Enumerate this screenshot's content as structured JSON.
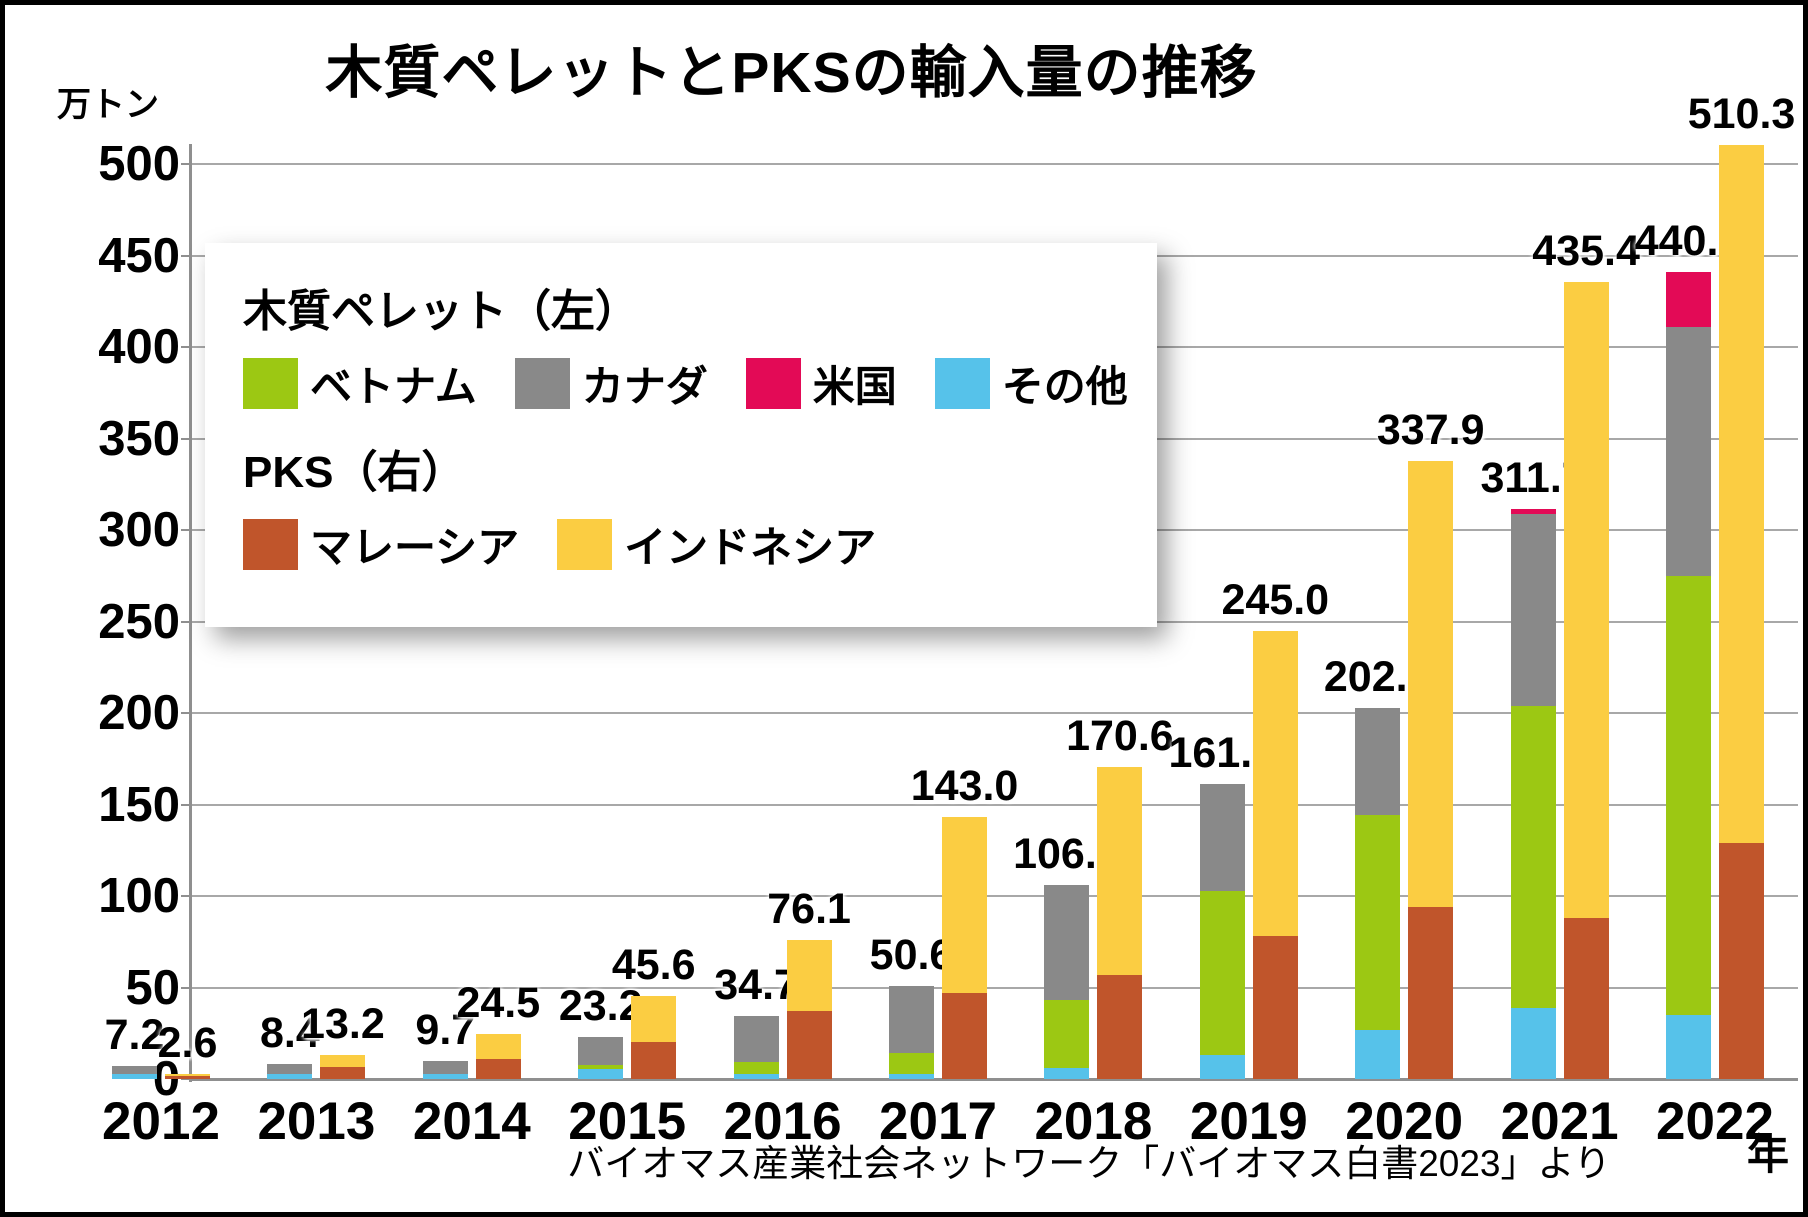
{
  "title": "木質ペレットとPKSの輸入量の推移",
  "y_unit": "万トン",
  "x_unit": "年",
  "source": "バイオマス産業社会ネットワーク「バイオマス白書2023」より",
  "chart_data": {
    "type": "bar",
    "stacked": true,
    "grid": true,
    "legend_position": "upper-left-overlay",
    "categories": [
      "2012",
      "2013",
      "2014",
      "2015",
      "2016",
      "2017",
      "2018",
      "2019",
      "2020",
      "2021",
      "2022"
    ],
    "ylim": [
      0,
      500
    ],
    "ytick_interval": 50,
    "legend_groups": [
      {
        "label": "木質ペレット（左）",
        "entries": [
          {
            "key": "vietnam",
            "name": "ベトナム",
            "color": "#9cc813"
          },
          {
            "key": "canada",
            "name": "カナダ",
            "color": "#898989"
          },
          {
            "key": "usa",
            "name": "米国",
            "color": "#e30a56"
          },
          {
            "key": "others",
            "name": "その他",
            "color": "#56c2ea"
          }
        ]
      },
      {
        "label": "PKS（右）",
        "entries": [
          {
            "key": "malaysia",
            "name": "マレーシア",
            "color": "#c0552b"
          },
          {
            "key": "indonesia",
            "name": "インドネシア",
            "color": "#fbcd42"
          }
        ]
      }
    ],
    "bars": [
      {
        "key": "pellet",
        "legend_group": 0,
        "stack_bottom_to_top": [
          "others",
          "vietnam",
          "canada",
          "usa"
        ],
        "totals": [
          "7.2",
          "8.4",
          "9.7",
          "23.2",
          "34.7",
          "50.6",
          "106.0",
          "161.0",
          "202.8",
          "311.7",
          "440.8"
        ],
        "segments": {
          "others": [
            2.5,
            2.5,
            2.7,
            5.7,
            2.6,
            2.6,
            6.0,
            13.0,
            27.0,
            39.0,
            35.0
          ],
          "vietnam": [
            0,
            0,
            0,
            2.1,
            6.7,
            11.8,
            37.0,
            89.5,
            117.0,
            165.0,
            240.0
          ],
          "canada": [
            4.7,
            5.9,
            7.0,
            15.4,
            25.4,
            36.2,
            63.0,
            58.5,
            58.8,
            105.0,
            136.0
          ],
          "usa": [
            0,
            0,
            0,
            0,
            0,
            0,
            0,
            0,
            0,
            2.7,
            29.8
          ]
        }
      },
      {
        "key": "pks",
        "legend_group": 1,
        "stack_bottom_to_top": [
          "malaysia",
          "indonesia"
        ],
        "totals": [
          "2.6",
          "13.2",
          "24.5",
          "45.6",
          "76.1",
          "143.0",
          "170.6",
          "245.0",
          "337.9",
          "435.4",
          "510.3"
        ],
        "segments": {
          "malaysia": [
            1.7,
            6.8,
            11.1,
            20.0,
            37.0,
            47.0,
            57.0,
            78.0,
            94.0,
            88.0,
            129.0
          ],
          "indonesia": [
            0.9,
            6.4,
            13.4,
            25.6,
            39.1,
            96.0,
            113.6,
            167.0,
            243.9,
            347.4,
            381.3
          ]
        }
      }
    ]
  }
}
